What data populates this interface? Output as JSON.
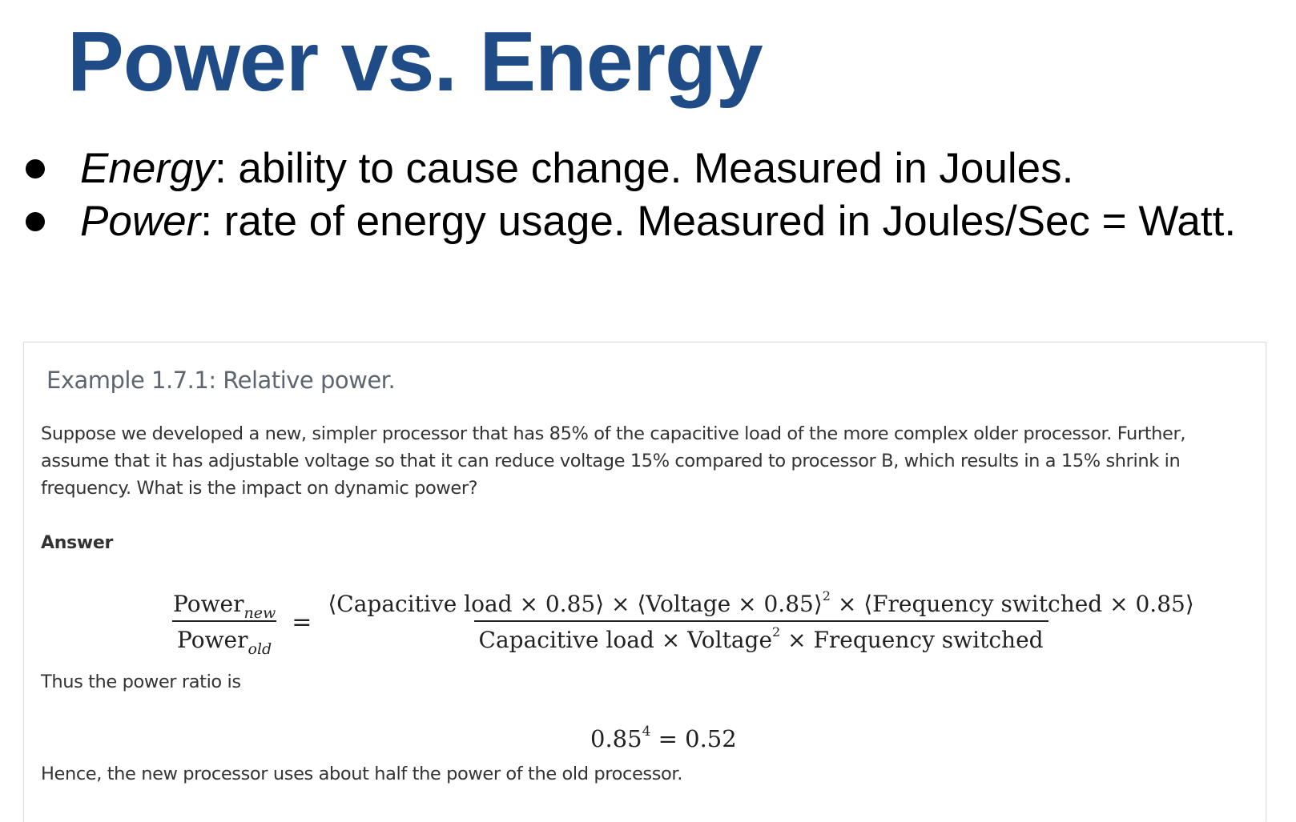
{
  "slide": {
    "title": "Power vs. Energy",
    "bullets": [
      {
        "term": "Energy",
        "text": ": ability to cause change. Measured in Joules."
      },
      {
        "term": "Power",
        "text": ": rate of energy usage. Measured in Joules/Sec = Watt."
      }
    ]
  },
  "example": {
    "title": "Example 1.7.1: Relative power.",
    "body": "Suppose we developed a new, simpler processor that has 85% of the capacitive load of the more complex older processor. Further, assume that it has adjustable voltage so that it can reduce voltage 15% compared to processor B, which results in a 15% shrink in frequency. What is the impact on dynamic power?",
    "answer_label": "Answer",
    "equation": {
      "lhs_num": "Power",
      "lhs_num_sub": "new",
      "lhs_den": "Power",
      "lhs_den_sub": "old",
      "equals": "=",
      "rhs_num_a": "⟨Capacitive load × 0.85⟩ × ⟨Voltage × 0.85⟩",
      "rhs_num_a_sup": "2",
      "rhs_num_b": " × ⟨Frequency switched × 0.85⟩",
      "rhs_den_a": "Capacitive load × Voltage",
      "rhs_den_a_sup": "2",
      "rhs_den_b": " × Frequency switched"
    },
    "ratio_intro": "Thus the power ratio is",
    "result": {
      "base": "0.85",
      "exponent": "4",
      "rest": " = 0.52"
    },
    "conclusion": "Hence, the new processor uses about half the power of the old processor."
  }
}
